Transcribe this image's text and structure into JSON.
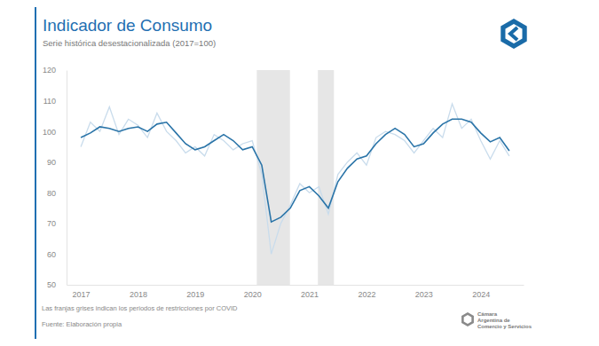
{
  "chart_data": {
    "type": "line",
    "title": "Indicador de Consumo",
    "subtitle": "Serie histórica desestacionalizada (2017=100)",
    "x": [
      2017,
      2017.167,
      2017.333,
      2017.5,
      2017.667,
      2017.833,
      2018,
      2018.167,
      2018.333,
      2018.5,
      2018.667,
      2018.833,
      2019,
      2019.167,
      2019.333,
      2019.5,
      2019.667,
      2019.833,
      2020,
      2020.167,
      2020.333,
      2020.5,
      2020.667,
      2020.833,
      2021,
      2021.167,
      2021.333,
      2021.5,
      2021.667,
      2021.833,
      2022,
      2022.167,
      2022.333,
      2022.5,
      2022.667,
      2022.833,
      2023,
      2023.167,
      2023.333,
      2023.5,
      2023.667,
      2023.833,
      2024,
      2024.167,
      2024.333,
      2024.5
    ],
    "series": [
      {
        "color": "#c9dcec",
        "values": [
          95,
          103,
          100,
          108,
          99,
          104,
          102,
          98,
          106,
          100,
          97,
          93,
          95,
          92,
          99,
          97,
          94,
          96,
          97,
          86,
          60,
          70,
          76,
          83,
          80,
          82,
          73,
          86,
          90,
          93,
          89,
          98,
          100,
          99,
          97,
          93,
          97,
          101,
          98,
          109,
          101,
          104,
          97,
          91,
          97,
          92
        ]
      },
      {
        "color": "#2a74a8",
        "values": [
          98,
          99.5,
          101.5,
          101,
          100,
          101,
          101.5,
          100,
          102.4,
          103,
          99.5,
          96,
          94,
          95,
          97,
          99,
          97,
          94,
          95,
          89,
          70.5,
          72,
          75,
          80.7,
          82,
          79,
          75,
          83.6,
          88,
          91,
          92,
          96,
          99,
          101,
          99,
          95,
          96,
          99.5,
          102.4,
          104,
          104,
          103,
          99.5,
          96.6,
          98,
          93.7
        ]
      }
    ],
    "shaded_periods": [
      [
        2020.08,
        2020.66
      ],
      [
        2021.15,
        2021.43
      ]
    ],
    "xlim": [
      2016.75,
      2024.75
    ],
    "xticks": [
      2017,
      2018,
      2019,
      2020,
      2021,
      2022,
      2023,
      2024
    ],
    "ylim": [
      50,
      120
    ],
    "yticks": [
      50,
      60,
      70,
      80,
      90,
      100,
      110,
      120
    ],
    "grid": false,
    "notes": [
      "Las franjas grises indican los periodos de restricciones por COVID",
      "Fuente: Elaboración propia"
    ],
    "logo_text": [
      "Cámara",
      "Argentina de",
      "Comercio y Servicios"
    ]
  }
}
